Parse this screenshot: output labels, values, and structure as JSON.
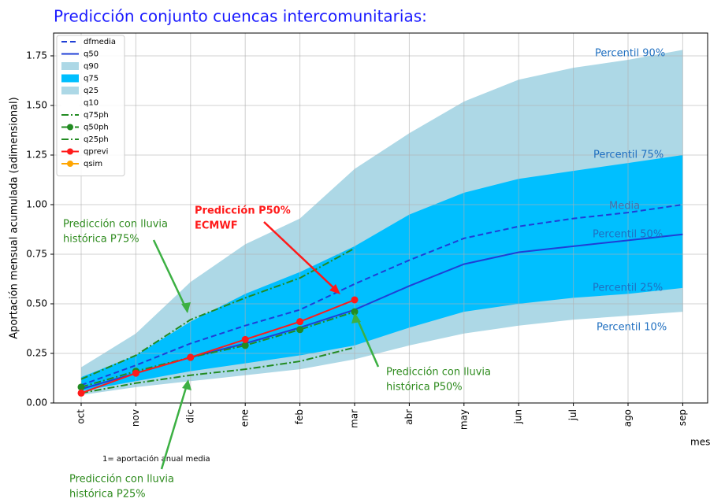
{
  "chart_data": {
    "type": "line",
    "title": "Predicción conjunto cuencas intercomunitarias:",
    "y_label": "Aportación mensual acumulada (adimensional)",
    "x_label": "mes",
    "note": "1= aportación anual media",
    "categories": [
      "oct",
      "nov",
      "dic",
      "ene",
      "feb",
      "mar",
      "abr",
      "may",
      "jun",
      "jul",
      "ago",
      "sep"
    ],
    "ylim": [
      0,
      1.865
    ],
    "yticks": [
      {
        "value": 0,
        "label": "0.00"
      },
      {
        "value": 0.25,
        "label": "0.25"
      },
      {
        "value": 0.5,
        "label": "0.50"
      },
      {
        "value": 0.75,
        "label": "0.75"
      },
      {
        "value": 1,
        "label": "1.00"
      },
      {
        "value": 1.25,
        "label": "1.25"
      },
      {
        "value": 1.5,
        "label": "1.50"
      },
      {
        "value": 1.75,
        "label": "1.75"
      }
    ],
    "grid": true,
    "legend": "upper left",
    "series": [
      {
        "name": "dfmedia",
        "color": "#1f3fd6",
        "style": "dashed",
        "values": [
          0.09,
          0.19,
          0.3,
          0.39,
          0.47,
          0.6,
          0.72,
          0.83,
          0.89,
          0.93,
          0.96,
          1.0
        ]
      },
      {
        "name": "q50",
        "color": "#1f3fd6",
        "style": "solid",
        "values": [
          0.07,
          0.15,
          0.23,
          0.3,
          0.38,
          0.47,
          0.59,
          0.7,
          0.76,
          0.79,
          0.82,
          0.85
        ]
      },
      {
        "name": "q90",
        "color": "#add8e6",
        "style": "fill",
        "values": [
          0.18,
          0.35,
          0.61,
          0.8,
          0.93,
          1.18,
          1.36,
          1.52,
          1.63,
          1.69,
          1.73,
          1.78
        ]
      },
      {
        "name": "q75",
        "color": "#00bfff",
        "style": "fill",
        "values": [
          0.13,
          0.24,
          0.41,
          0.55,
          0.66,
          0.79,
          0.95,
          1.06,
          1.13,
          1.17,
          1.21,
          1.25
        ]
      },
      {
        "name": "q25",
        "color": "#add8e6",
        "style": "fill",
        "values": [
          0.06,
          0.11,
          0.16,
          0.2,
          0.24,
          0.29,
          0.38,
          0.46,
          0.5,
          0.53,
          0.55,
          0.58
        ]
      },
      {
        "name": "q10",
        "color": "#ffffff",
        "style": "fill",
        "values": [
          0.04,
          0.08,
          0.11,
          0.14,
          0.17,
          0.22,
          0.29,
          0.35,
          0.39,
          0.42,
          0.44,
          0.46
        ]
      },
      {
        "name": "q75ph",
        "color": "#228b22",
        "style": "dashdot",
        "values": [
          0.12,
          0.24,
          0.42,
          0.53,
          0.63,
          0.78,
          null,
          null,
          null,
          null,
          null,
          null
        ]
      },
      {
        "name": "q50ph",
        "color": "#228b22",
        "style": "dashdot",
        "marker": true,
        "values": [
          0.08,
          0.16,
          0.23,
          0.29,
          0.37,
          0.46,
          null,
          null,
          null,
          null,
          null,
          null
        ]
      },
      {
        "name": "q25ph",
        "color": "#228b22",
        "style": "dashdot",
        "values": [
          0.05,
          0.1,
          0.14,
          0.17,
          0.21,
          0.28,
          null,
          null,
          null,
          null,
          null,
          null
        ]
      },
      {
        "name": "qprevi",
        "color": "#ff1a1a",
        "style": "solid",
        "marker": true,
        "values": [
          0.05,
          0.15,
          0.23,
          0.32,
          0.41,
          0.52,
          null,
          null,
          null,
          null,
          null,
          null
        ]
      },
      {
        "name": "qsim",
        "color": "#ffa500",
        "style": "solid",
        "marker": true,
        "values": [
          null,
          null,
          null,
          null,
          null,
          null,
          null,
          null,
          null,
          null,
          null,
          null
        ]
      }
    ],
    "annotations": [
      {
        "lines": [
          "Percentil 90%"
        ],
        "color": "#1f6fc0"
      },
      {
        "lines": [
          "Percentil 75%"
        ],
        "color": "#1f6fc0"
      },
      {
        "lines": [
          "Media"
        ],
        "color": "#4a6fa8"
      },
      {
        "lines": [
          "Percentil 50%"
        ],
        "color": "#1f6fc0"
      },
      {
        "lines": [
          "Percentil 25%"
        ],
        "color": "#1f6fc0"
      },
      {
        "lines": [
          "Percentil 10%"
        ],
        "color": "#1f6fc0"
      },
      {
        "lines": [
          "Predicción con lluvia",
          "histórica P75%"
        ],
        "color": "#2e8b1e"
      },
      {
        "lines": [
          "Predicción P50%",
          "ECMWF"
        ],
        "color": "#ff1a1a"
      },
      {
        "lines": [
          "Predicción con lluvia",
          "histórica P50%"
        ],
        "color": "#2e8b1e"
      },
      {
        "lines": [
          "Predicción con lluvia",
          "histórica P25%"
        ],
        "color": "#2e8b1e"
      }
    ]
  }
}
